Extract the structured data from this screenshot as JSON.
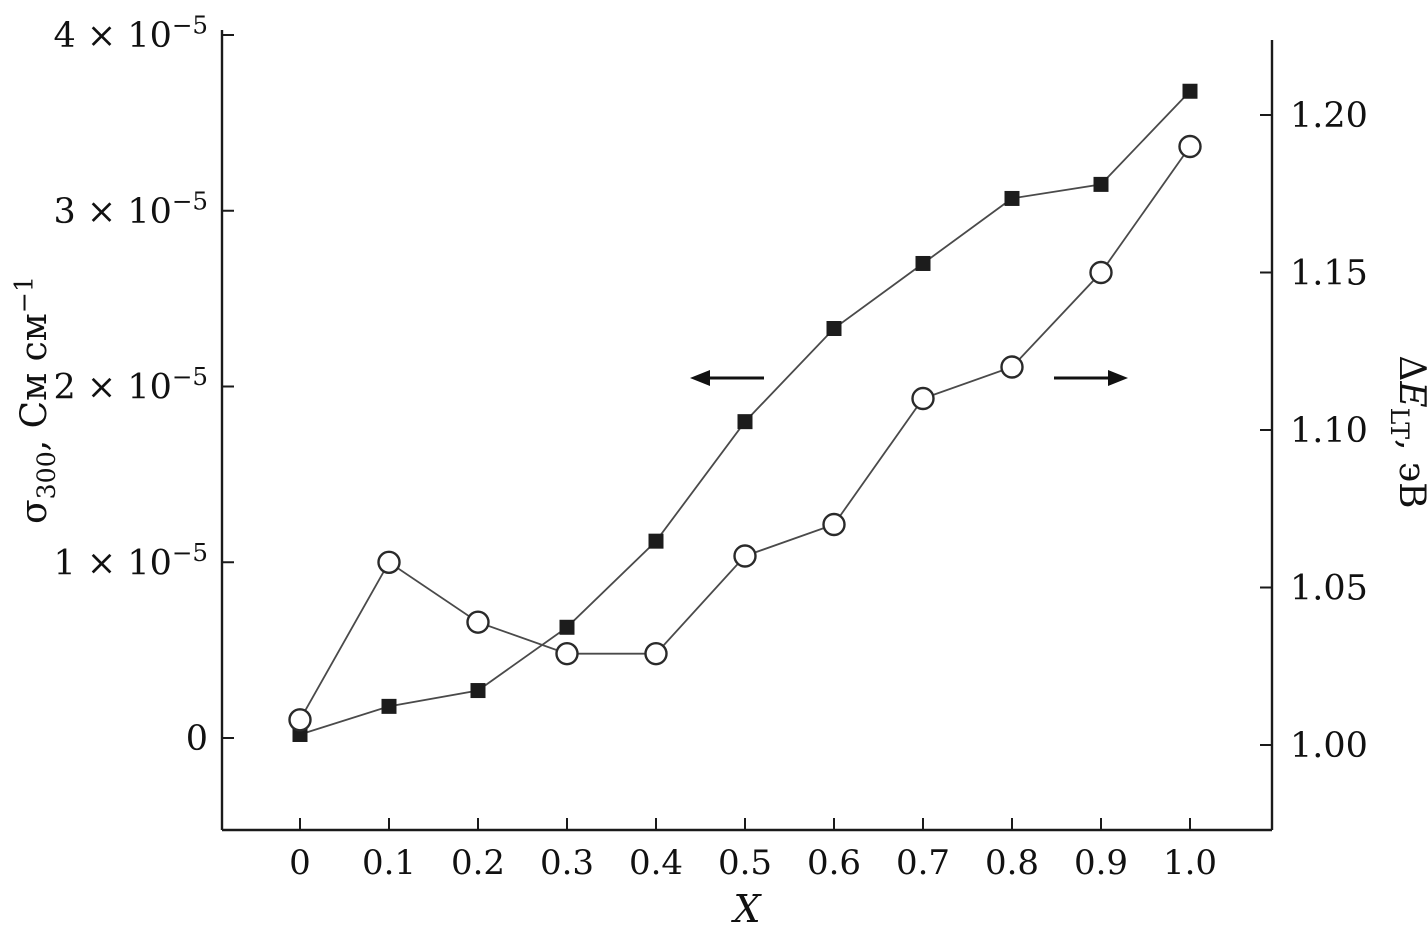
{
  "figure": {
    "background": "#ffffff",
    "line_color": "#4a4a4a",
    "marker_color": "#1c1c1c",
    "text_color": "#111111",
    "axis_color": "#1a1a1a"
  },
  "chart_data": {
    "type": "line",
    "x_label": "X",
    "x": [
      0,
      0.1,
      0.2,
      0.3,
      0.4,
      0.5,
      0.6,
      0.7,
      0.8,
      0.9,
      1.0
    ],
    "x_tick_labels": [
      "0",
      "0.1",
      "0.2",
      "0.3",
      "0.4",
      "0.5",
      "0.6",
      "0.7",
      "0.8",
      "0.9",
      "1.0"
    ],
    "series": [
      {
        "name": "sigma-300-conductivity",
        "axis": "left",
        "marker": "filled-square",
        "values": [
          2e-07,
          1.8e-06,
          2.7e-06,
          6.3e-06,
          1.12e-05,
          1.8e-05,
          2.33e-05,
          2.7e-05,
          3.07e-05,
          3.15e-05,
          3.68e-05
        ]
      },
      {
        "name": "delta-E-LT-activation-energy",
        "axis": "right",
        "marker": "open-circle",
        "values": [
          1.008,
          1.058,
          1.039,
          1.029,
          1.029,
          1.06,
          1.07,
          1.11,
          1.12,
          1.15,
          1.19
        ]
      }
    ],
    "left_axis": {
      "label_parts": [
        {
          "t": "σ"
        },
        {
          "t": "300",
          "sub": true
        },
        {
          "t": ", См см"
        },
        {
          "t": "−1",
          "sup": true
        }
      ],
      "range": [
        -5.2e-06,
        4.03e-05
      ],
      "ticks": [
        {
          "value": 0,
          "label_parts": [
            {
              "t": "0"
            }
          ]
        },
        {
          "value": 1e-05,
          "label_parts": [
            {
              "t": "1 × 10"
            },
            {
              "t": "−5",
              "sup": true
            }
          ]
        },
        {
          "value": 2e-05,
          "label_parts": [
            {
              "t": "2 × 10"
            },
            {
              "t": "−5",
              "sup": true
            }
          ]
        },
        {
          "value": 3e-05,
          "label_parts": [
            {
              "t": "3 × 10"
            },
            {
              "t": "−5",
              "sup": true
            }
          ]
        },
        {
          "value": 4e-05,
          "label_parts": [
            {
              "t": "4 × 10"
            },
            {
              "t": "−5",
              "sup": true
            }
          ]
        }
      ]
    },
    "right_axis": {
      "label_parts": [
        {
          "t": "Δ"
        },
        {
          "t": "E",
          "italic": true
        },
        {
          "t": "LT",
          "sub": true
        },
        {
          "t": ", эВ"
        }
      ],
      "range": [
        0.973,
        1.227
      ],
      "ticks": [
        {
          "value": 1.0,
          "label": "1.00"
        },
        {
          "value": 1.05,
          "label": "1.05"
        },
        {
          "value": 1.1,
          "label": "1.10"
        },
        {
          "value": 1.15,
          "label": "1.15"
        },
        {
          "value": 1.2,
          "label": "1.20"
        }
      ]
    },
    "annotations": [
      {
        "name": "left-series-arrow",
        "type": "arrow",
        "direction": "left"
      },
      {
        "name": "right-series-arrow",
        "type": "arrow",
        "direction": "right"
      }
    ],
    "legend": null,
    "grid": false
  }
}
